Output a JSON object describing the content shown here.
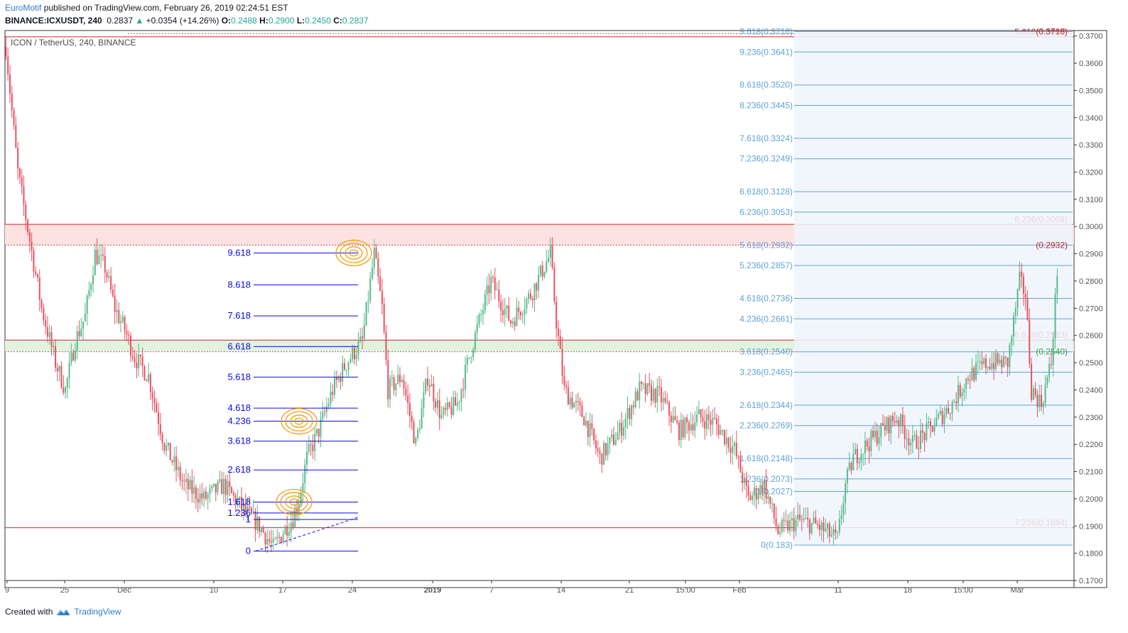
{
  "header": {
    "author": "EuroMotif",
    "published": "published on TradingView.com, February 26, 2019 02:24:51 EST",
    "symbol": "BINANCE:ICXUSDT, 240",
    "last": "0.2837",
    "change_arrow": "▲",
    "change": "+0.0354 (+14.26%)",
    "o_label": "O:",
    "o_value": "0.2488",
    "h_label": "H:",
    "h_value": "0.2900",
    "l_label": "L:",
    "l_value": "0.2450",
    "c_label": "C:",
    "c_value": "0.2837"
  },
  "footer": {
    "created_with": "Created with",
    "brand": "TradingView",
    "logo_icon": "tradingview-logo-icon"
  },
  "colors": {
    "up": "#53b987",
    "down": "#eb4d5c",
    "fib_left": "#0a0aee",
    "fib_right": "#5fa3d9",
    "hline": "#c62828",
    "axis": "#555555",
    "grid": "#e0e3eb",
    "circle": "#f39c12"
  },
  "chart_data": {
    "type": "candlestick",
    "title": "ICON / TetherUS, 240, BINANCE",
    "ylim": [
      0.17,
      0.372
    ],
    "y_ticks": [
      "0.3700",
      "0.3600",
      "0.3500",
      "0.3400",
      "0.3300",
      "0.3200",
      "0.3100",
      "0.3000",
      "0.2900",
      "0.2800",
      "0.2700",
      "0.2600",
      "0.2500",
      "0.2400",
      "0.2300",
      "0.2200",
      "0.2100",
      "0.2000",
      "0.1900",
      "0.1800",
      "0.1700"
    ],
    "x_ticks": [
      "9",
      "25",
      "Dec",
      "10",
      "17",
      "24",
      "2019",
      "7",
      "14",
      "21",
      "15:00",
      "Feb",
      "11",
      "18",
      "15:00",
      "Mar"
    ],
    "price_path": [
      [
        0,
        0.366
      ],
      [
        2,
        0.35
      ],
      [
        6,
        0.32
      ],
      [
        12,
        0.295
      ],
      [
        18,
        0.27
      ],
      [
        25,
        0.25
      ],
      [
        30,
        0.24
      ],
      [
        35,
        0.258
      ],
      [
        40,
        0.267
      ],
      [
        45,
        0.29
      ],
      [
        50,
        0.285
      ],
      [
        55,
        0.27
      ],
      [
        60,
        0.262
      ],
      [
        65,
        0.252
      ],
      [
        72,
        0.245
      ],
      [
        80,
        0.22
      ],
      [
        90,
        0.205
      ],
      [
        100,
        0.2
      ],
      [
        110,
        0.205
      ],
      [
        120,
        0.196
      ],
      [
        128,
        0.19
      ],
      [
        135,
        0.182
      ],
      [
        140,
        0.188
      ],
      [
        145,
        0.193
      ],
      [
        148,
        0.2
      ],
      [
        152,
        0.215
      ],
      [
        158,
        0.225
      ],
      [
        165,
        0.24
      ],
      [
        172,
        0.25
      ],
      [
        180,
        0.258
      ],
      [
        186,
        0.29
      ],
      [
        190,
        0.27
      ],
      [
        193,
        0.24
      ],
      [
        200,
        0.245
      ],
      [
        207,
        0.22
      ],
      [
        213,
        0.245
      ],
      [
        220,
        0.23
      ],
      [
        228,
        0.235
      ],
      [
        235,
        0.255
      ],
      [
        245,
        0.28
      ],
      [
        255,
        0.265
      ],
      [
        265,
        0.275
      ],
      [
        275,
        0.29
      ],
      [
        278,
        0.265
      ],
      [
        282,
        0.24
      ],
      [
        292,
        0.23
      ],
      [
        300,
        0.215
      ],
      [
        310,
        0.225
      ],
      [
        320,
        0.24
      ],
      [
        330,
        0.238
      ],
      [
        340,
        0.225
      ],
      [
        350,
        0.23
      ],
      [
        358,
        0.228
      ],
      [
        368,
        0.218
      ],
      [
        375,
        0.2
      ],
      [
        383,
        0.205
      ],
      [
        390,
        0.188
      ],
      [
        400,
        0.192
      ],
      [
        410,
        0.19
      ],
      [
        420,
        0.185
      ],
      [
        424,
        0.205
      ],
      [
        428,
        0.215
      ],
      [
        435,
        0.22
      ],
      [
        442,
        0.225
      ],
      [
        450,
        0.23
      ],
      [
        458,
        0.22
      ],
      [
        466,
        0.225
      ],
      [
        472,
        0.23
      ],
      [
        478,
        0.235
      ],
      [
        486,
        0.245
      ],
      [
        496,
        0.25
      ],
      [
        506,
        0.25
      ],
      [
        512,
        0.28
      ],
      [
        515,
        0.275
      ],
      [
        518,
        0.24
      ],
      [
        523,
        0.235
      ],
      [
        528,
        0.25
      ],
      [
        531,
        0.2837
      ]
    ],
    "price_lines": [
      {
        "price": 0.3697,
        "label": "5.618(0.3697)",
        "fill": false
      },
      {
        "price": 0.3008,
        "label": "6.236(0.3008)",
        "zone_to": 0.2932,
        "zone_color": "#fde2e2"
      },
      {
        "price": 0.2583,
        "label": "6.618(0.2583)",
        "zone_to": 0.254,
        "zone_color": "#e3f2df"
      },
      {
        "price": 0.1894,
        "label": "7.236(0.1894)",
        "fill": false
      }
    ],
    "right_tags": [
      {
        "price": 0.3716,
        "label": "(0.3716)"
      },
      {
        "price": 0.2932,
        "label": "(0.2932)"
      },
      {
        "price": 0.254,
        "label": "(0.2540)"
      }
    ],
    "fib_left": {
      "levels": [
        "0",
        "1",
        "1.236",
        "1.618",
        "2.618",
        "3.618",
        "4.236",
        "4.618",
        "5.618",
        "6.618",
        "7.618",
        "8.618",
        "9.618"
      ],
      "prices": [
        0.1808,
        0.1924,
        0.1948,
        0.1988,
        0.2106,
        0.2212,
        0.2285,
        0.2333,
        0.2447,
        0.2559,
        0.2672,
        0.2786,
        0.2903
      ]
    },
    "fib_right": {
      "labels": [
        "0(0.183)",
        "1(0.2027)",
        "1.236(0.2073)",
        "1.618(0.2148)",
        "2.236(0.2269)",
        "2.618(0.2344)",
        "3.236(0.2465)",
        "3.618(0.2540)",
        "4.236(0.2661)",
        "4.618(0.2736)",
        "5.236(0.2857)",
        "5.618(0.2932)",
        "6.236(0.3053)",
        "6.618(0.3128)",
        "7.236(0.3249)",
        "7.618(0.3324)",
        "8.236(0.3445)",
        "8.618(0.3520)",
        "9.236(0.3641)",
        "9.618(0.3716)"
      ],
      "prices": [
        0.183,
        0.2027,
        0.2073,
        0.2148,
        0.2269,
        0.2344,
        0.2465,
        0.254,
        0.2661,
        0.2736,
        0.2857,
        0.2932,
        0.3053,
        0.3128,
        0.3249,
        0.3324,
        0.3445,
        0.352,
        0.3641,
        0.3716
      ]
    }
  }
}
